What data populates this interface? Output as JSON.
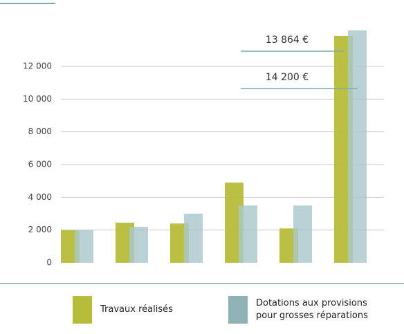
{
  "chart_data": {
    "type": "bar",
    "categories": [
      null,
      null,
      null,
      null,
      null,
      null
    ],
    "series": [
      {
        "name": "Travaux réalisés",
        "color": "#b5bd3a",
        "values": [
          2000,
          2450,
          2400,
          4900,
          2100,
          13864
        ],
        "value_labels": [
          null,
          null,
          null,
          null,
          null,
          "13 864 €"
        ]
      },
      {
        "name": "Dotations aux provisions pour grosses réparations",
        "color": "#a9c7cb",
        "values": [
          2000,
          2200,
          3000,
          3500,
          3500,
          14200
        ],
        "value_labels": [
          null,
          null,
          null,
          null,
          null,
          "14 200 €"
        ]
      }
    ],
    "ylim": [
      0,
      15000
    ],
    "yticks": [
      0,
      {
        "value": 2000,
        "label": "2 000"
      },
      {
        "value": 4000,
        "label": "4 000"
      },
      {
        "value": 6000,
        "label": "6 000"
      },
      {
        "value": 8000,
        "label": "8 000"
      },
      {
        "value": 10000,
        "label": "10 000"
      },
      {
        "value": 12000,
        "label": "12 000"
      }
    ],
    "grid": true
  }
}
